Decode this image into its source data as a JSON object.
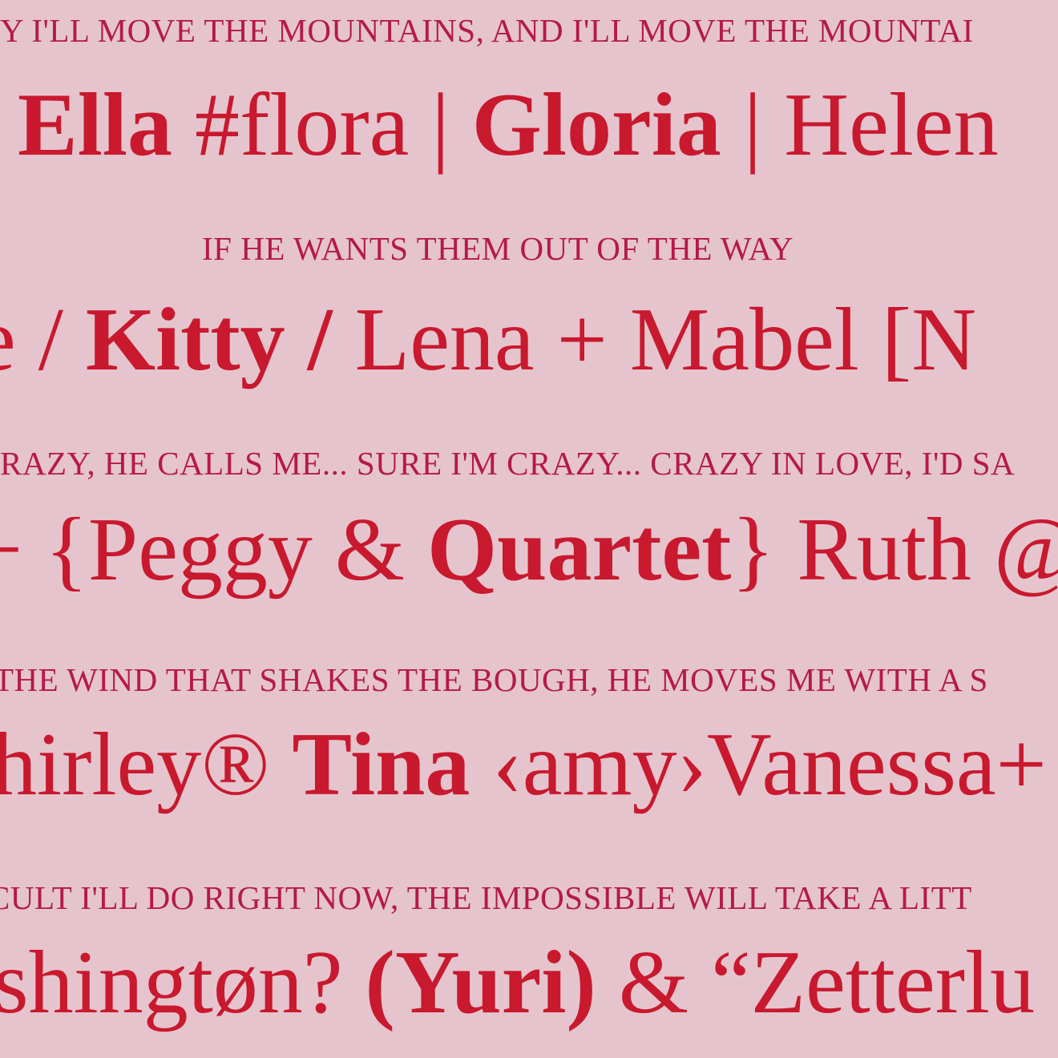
{
  "lines": [
    {
      "style": "small",
      "text": "Y I'LL MOVE THE MOUNTAINS, AND I'LL MOVE THE MOUNTAI"
    },
    {
      "style": "large",
      "segments": [
        {
          "text": "Ella",
          "bold": true
        },
        {
          "text": " #flora | ",
          "bold": false
        },
        {
          "text": "Gloria",
          "bold": true
        },
        {
          "text": " | Helen",
          "bold": false
        }
      ]
    },
    {
      "style": "small",
      "text": "IF HE WANTS THEM OUT OF THE WAY"
    },
    {
      "style": "large",
      "segments": [
        {
          "text": "e / ",
          "bold": false
        },
        {
          "text": "Kitty / ",
          "bold": true
        },
        {
          "text": "Lena + Mabel [N",
          "bold": false
        }
      ]
    },
    {
      "style": "small",
      "text": "RAZY, HE CALLS ME... SURE I'M CRAZY... CRAZY IN LOVE, I'D SA"
    },
    {
      "style": "large",
      "segments": [
        {
          "text": "+ {Peggy & ",
          "bold": false
        },
        {
          "text": "Quartet",
          "bold": true
        },
        {
          "text": "} Ruth @",
          "bold": false
        }
      ]
    },
    {
      "style": "small",
      "text": "THE WIND THAT SHAKES THE BOUGH, HE MOVES ME WITH A S"
    },
    {
      "style": "large",
      "segments": [
        {
          "text": "hirley® ",
          "bold": false
        },
        {
          "text": "Tina",
          "bold": true
        },
        {
          "text": " ‹amy›Vanessa+",
          "bold": false
        }
      ]
    },
    {
      "style": "small",
      "text": "CULT I'LL DO RIGHT NOW, THE IMPOSSIBLE WILL TAKE A LITT"
    },
    {
      "style": "large",
      "segments": [
        {
          "text": "shingtøn? ",
          "bold": false
        },
        {
          "text": "(Yuri)",
          "bold": true
        },
        {
          "text": " & “Zetterlu",
          "bold": false
        }
      ]
    }
  ]
}
